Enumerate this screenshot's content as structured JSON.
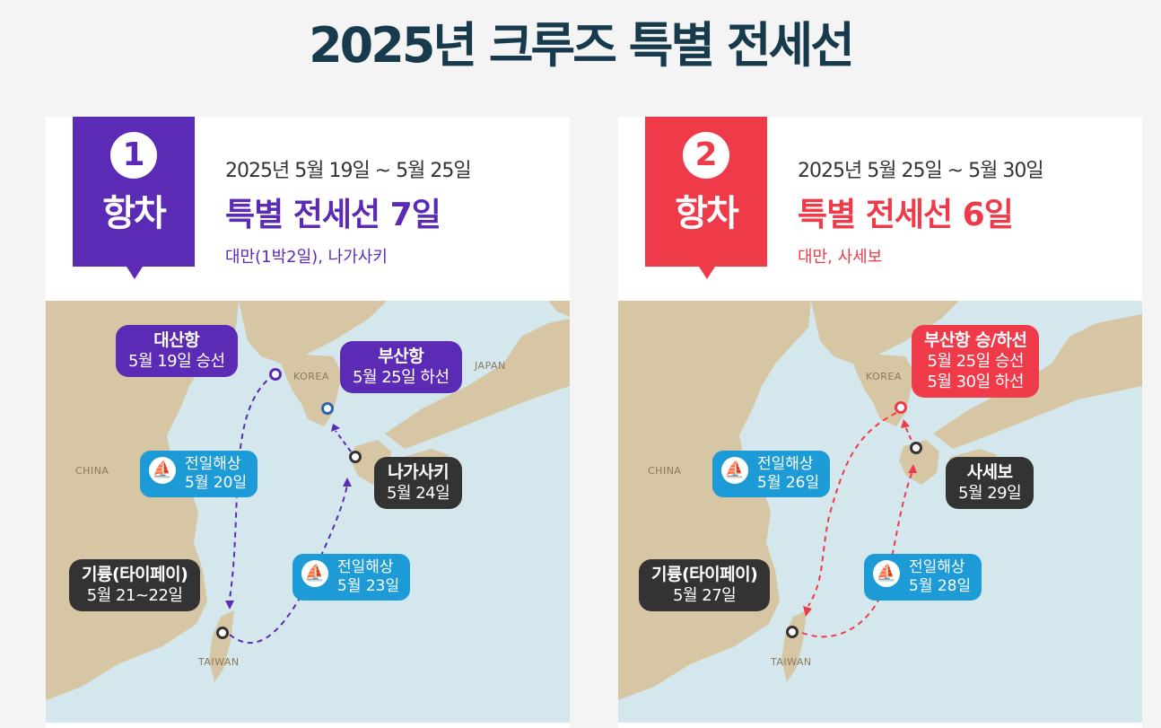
{
  "page_title": "2025년 크루즈 특별 전세선",
  "colors": {
    "title": "#173a4c",
    "voyage1": "#5b2bb6",
    "voyage2": "#ef3a4a",
    "sea_badge": "#1d9bd6",
    "port_dark": "#333333",
    "land": "#d7c6a3",
    "water": "#d4e7ed"
  },
  "voyages": [
    {
      "number": "1",
      "label": "항차",
      "dates": "2025년 5월 19일 ~ 5월 25일",
      "headline": "특별 전세선 7일",
      "ports_summary": "대만(1박2일), 나가사키",
      "map": {
        "country_labels": {
          "korea": "KOREA",
          "japan": "JAPAN",
          "china": "CHINA",
          "taiwan": "TAIWAN"
        },
        "stops": [
          {
            "name": "대산항",
            "date": "5월 19일 승선"
          },
          {
            "name": "부산항",
            "date": "5월 25일 하선"
          },
          {
            "name": "나가사키",
            "date": "5월 24일"
          },
          {
            "name": "기륭(타이페이)",
            "date": "5월 21~22일"
          }
        ],
        "sea_days": [
          {
            "label": "전일해상",
            "date": "5월 20일"
          },
          {
            "label": "전일해상",
            "date": "5월 23일"
          }
        ]
      }
    },
    {
      "number": "2",
      "label": "항차",
      "dates": "2025년 5월 25일 ~ 5월 30일",
      "headline": "특별 전세선 6일",
      "ports_summary": "대만, 사세보",
      "map": {
        "country_labels": {
          "korea": "KOREA",
          "china": "CHINA",
          "taiwan": "TAIWAN"
        },
        "stops": [
          {
            "name": "부산항 승/하선",
            "date": "5월 25일 승선",
            "date2": "5월 30일 하선"
          },
          {
            "name": "사세보",
            "date": "5월 29일"
          },
          {
            "name": "기륭(타이페이)",
            "date": "5월 27일"
          }
        ],
        "sea_days": [
          {
            "label": "전일해상",
            "date": "5월 26일"
          },
          {
            "label": "전일해상",
            "date": "5월 28일"
          }
        ]
      }
    }
  ]
}
